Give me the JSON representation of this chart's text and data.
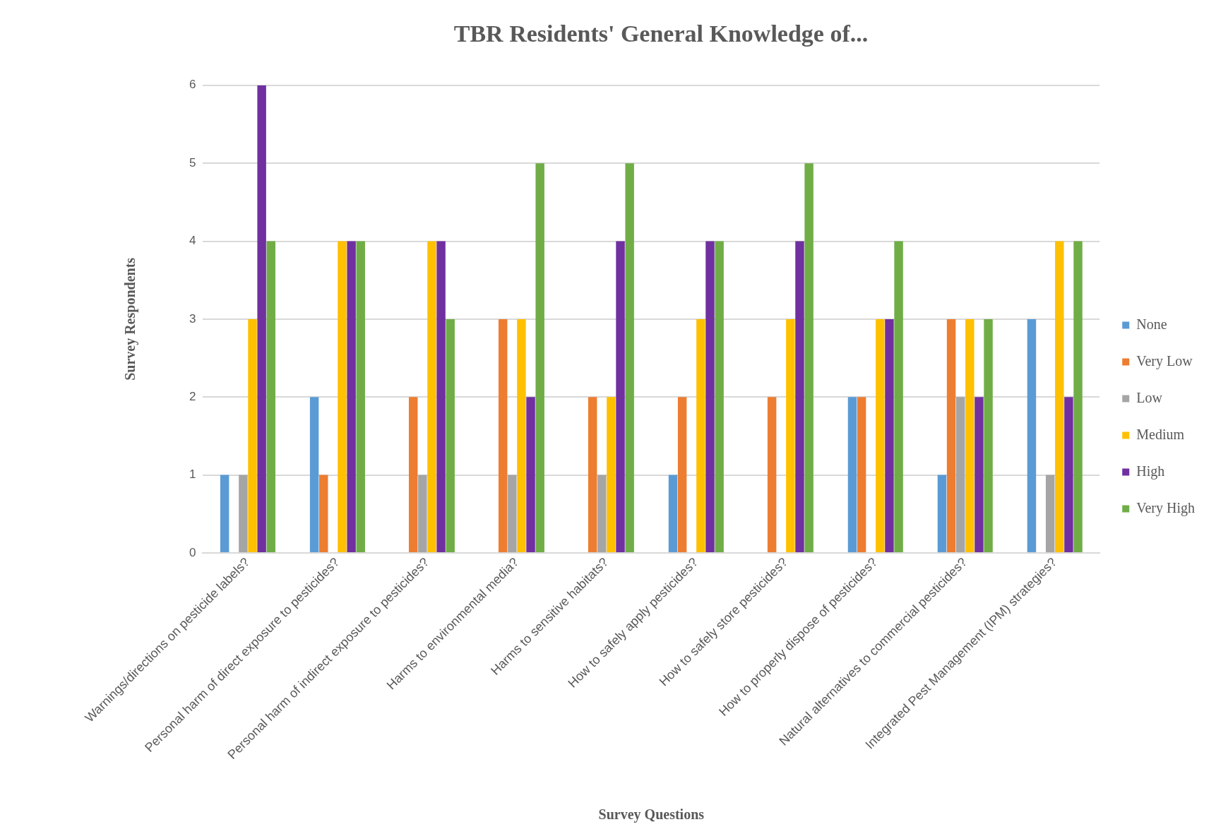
{
  "chart_data": {
    "type": "bar",
    "title": "TBR Residents' General Knowledge of...",
    "xlabel": "Survey Questions",
    "ylabel": "Survey Respondents",
    "categories": [
      "Warnings/directions on pesticide labels?",
      "Personal harm of direct exposure to pesticides?",
      "Personal harm of indirect exposure to pesticides?",
      "Harms to environmental media?",
      "Harms to sensitive habitats?",
      "How to safely apply pesticides?",
      "How to safely store pesticides?",
      "How to properly dispose of pesticides?",
      "Natural alternatives to commercial pesticides?",
      "Integrated Pest Management (IPM) strategies?"
    ],
    "series": [
      {
        "name": "None",
        "color": "#5b9bd5",
        "values": [
          1,
          2,
          0,
          0,
          0,
          1,
          0,
          2,
          1,
          3
        ]
      },
      {
        "name": "Very Low",
        "color": "#ed7d31",
        "values": [
          0,
          1,
          2,
          3,
          2,
          2,
          2,
          2,
          3,
          0
        ]
      },
      {
        "name": "Low",
        "color": "#a5a5a5",
        "values": [
          1,
          0,
          1,
          1,
          1,
          0,
          0,
          0,
          2,
          1
        ]
      },
      {
        "name": "Medium",
        "color": "#ffc000",
        "values": [
          3,
          4,
          4,
          3,
          2,
          3,
          3,
          3,
          3,
          4
        ]
      },
      {
        "name": "High",
        "color": "#7030a0",
        "values": [
          6,
          4,
          4,
          2,
          4,
          4,
          4,
          3,
          2,
          2
        ]
      },
      {
        "name": "Very High",
        "color": "#70ad47",
        "values": [
          4,
          4,
          3,
          5,
          5,
          4,
          5,
          4,
          3,
          4
        ]
      }
    ],
    "ylim": [
      0,
      6
    ],
    "yticks": [
      0,
      1,
      2,
      3,
      4,
      5,
      6
    ],
    "grid": "y",
    "legend": "right"
  }
}
